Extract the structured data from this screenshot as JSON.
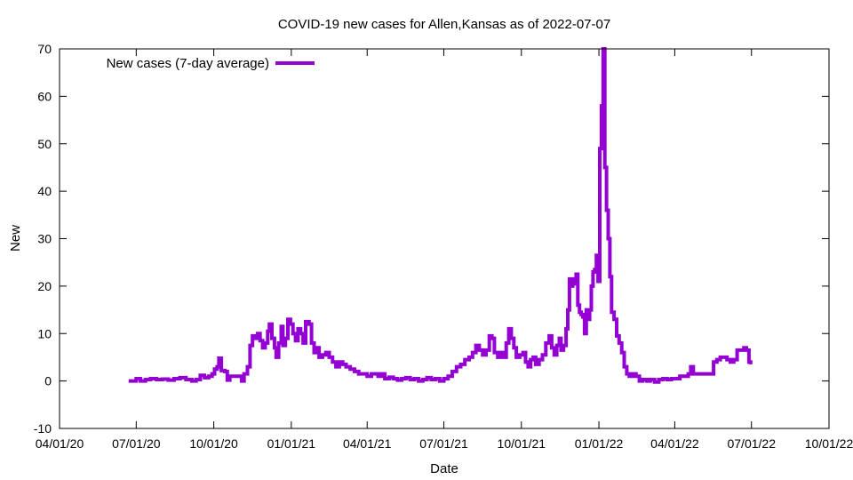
{
  "chart_data": {
    "type": "line",
    "title": "COVID-19 new cases for Allen,Kansas as of 2022-07-07",
    "xlabel": "Date",
    "ylabel": "New",
    "ylim": [
      -10,
      70
    ],
    "xlim": [
      "2020-04-01",
      "2022-10-01"
    ],
    "grid": false,
    "legend_position": "top-left",
    "y_ticks": [
      -10,
      0,
      10,
      20,
      30,
      40,
      50,
      60,
      70
    ],
    "x_ticks": [
      {
        "date": "2020-04-01",
        "label": "04/01/20"
      },
      {
        "date": "2020-07-01",
        "label": "07/01/20"
      },
      {
        "date": "2020-10-01",
        "label": "10/01/20"
      },
      {
        "date": "2021-01-01",
        "label": "01/01/21"
      },
      {
        "date": "2021-04-01",
        "label": "04/01/21"
      },
      {
        "date": "2021-07-01",
        "label": "07/01/21"
      },
      {
        "date": "2021-10-01",
        "label": "10/01/21"
      },
      {
        "date": "2022-01-01",
        "label": "01/01/22"
      },
      {
        "date": "2022-04-01",
        "label": "04/01/22"
      },
      {
        "date": "2022-07-01",
        "label": "07/01/22"
      },
      {
        "date": "2022-10-01",
        "label": "10/01/22"
      }
    ],
    "series": [
      {
        "name": "New cases (7-day average)",
        "color": "#9400d3",
        "points": [
          [
            "2020-06-22",
            0
          ],
          [
            "2020-06-28",
            0
          ],
          [
            "2020-07-01",
            0.5
          ],
          [
            "2020-07-06",
            0
          ],
          [
            "2020-07-12",
            0.3
          ],
          [
            "2020-07-18",
            0.5
          ],
          [
            "2020-07-25",
            0.3
          ],
          [
            "2020-08-01",
            0.4
          ],
          [
            "2020-08-08",
            0.2
          ],
          [
            "2020-08-15",
            0.5
          ],
          [
            "2020-08-22",
            0.7
          ],
          [
            "2020-08-29",
            0.3
          ],
          [
            "2020-09-05",
            0.0
          ],
          [
            "2020-09-10",
            0.3
          ],
          [
            "2020-09-15",
            1.2
          ],
          [
            "2020-09-20",
            0.7
          ],
          [
            "2020-09-25",
            1.0
          ],
          [
            "2020-09-29",
            1.5
          ],
          [
            "2020-10-02",
            2.5
          ],
          [
            "2020-10-05",
            3.0
          ],
          [
            "2020-10-07",
            4.8
          ],
          [
            "2020-10-10",
            2.2
          ],
          [
            "2020-10-14",
            2.0
          ],
          [
            "2020-10-17",
            0.2
          ],
          [
            "2020-10-20",
            1.0
          ],
          [
            "2020-10-26",
            1.0
          ],
          [
            "2020-10-31",
            1.0
          ],
          [
            "2020-11-03",
            0.0
          ],
          [
            "2020-11-06",
            1.5
          ],
          [
            "2020-11-10",
            3.0
          ],
          [
            "2020-11-13",
            7.5
          ],
          [
            "2020-11-16",
            9.5
          ],
          [
            "2020-11-19",
            9.0
          ],
          [
            "2020-11-22",
            10.0
          ],
          [
            "2020-11-25",
            8.5
          ],
          [
            "2020-11-28",
            7.0
          ],
          [
            "2020-12-01",
            8.0
          ],
          [
            "2020-12-04",
            10.5
          ],
          [
            "2020-12-06",
            12.0
          ],
          [
            "2020-12-09",
            9.0
          ],
          [
            "2020-12-12",
            7.0
          ],
          [
            "2020-12-14",
            5.0
          ],
          [
            "2020-12-17",
            8.0
          ],
          [
            "2020-12-20",
            11.5
          ],
          [
            "2020-12-22",
            7.5
          ],
          [
            "2020-12-25",
            9.0
          ],
          [
            "2020-12-28",
            13.0
          ],
          [
            "2020-12-31",
            12.0
          ],
          [
            "2021-01-03",
            10.0
          ],
          [
            "2021-01-06",
            8.5
          ],
          [
            "2021-01-09",
            11.0
          ],
          [
            "2021-01-12",
            10.0
          ],
          [
            "2021-01-15",
            8.0
          ],
          [
            "2021-01-18",
            12.5
          ],
          [
            "2021-01-22",
            12.0
          ],
          [
            "2021-01-25",
            8.0
          ],
          [
            "2021-01-28",
            6.0
          ],
          [
            "2021-01-31",
            7.0
          ],
          [
            "2021-02-03",
            5.0
          ],
          [
            "2021-02-07",
            5.5
          ],
          [
            "2021-02-11",
            6.0
          ],
          [
            "2021-02-15",
            5.0
          ],
          [
            "2021-02-19",
            4.0
          ],
          [
            "2021-02-23",
            3.0
          ],
          [
            "2021-02-27",
            4.0
          ],
          [
            "2021-03-03",
            3.5
          ],
          [
            "2021-03-07",
            3.0
          ],
          [
            "2021-03-12",
            2.5
          ],
          [
            "2021-03-17",
            2.0
          ],
          [
            "2021-03-22",
            1.5
          ],
          [
            "2021-03-27",
            1.5
          ],
          [
            "2021-04-01",
            1.0
          ],
          [
            "2021-04-06",
            1.5
          ],
          [
            "2021-04-10",
            1.5
          ],
          [
            "2021-04-14",
            1.0
          ],
          [
            "2021-04-18",
            1.5
          ],
          [
            "2021-04-22",
            0.5
          ],
          [
            "2021-04-27",
            0.8
          ],
          [
            "2021-05-02",
            0.5
          ],
          [
            "2021-05-07",
            0.2
          ],
          [
            "2021-05-12",
            0.5
          ],
          [
            "2021-05-17",
            0.7
          ],
          [
            "2021-05-22",
            0.3
          ],
          [
            "2021-05-27",
            0.5
          ],
          [
            "2021-06-01",
            0.0
          ],
          [
            "2021-06-06",
            0.3
          ],
          [
            "2021-06-11",
            0.7
          ],
          [
            "2021-06-16",
            0.3
          ],
          [
            "2021-06-21",
            0.5
          ],
          [
            "2021-06-26",
            0.0
          ],
          [
            "2021-07-01",
            0.5
          ],
          [
            "2021-07-06",
            1.0
          ],
          [
            "2021-07-11",
            2.0
          ],
          [
            "2021-07-16",
            3.0
          ],
          [
            "2021-07-21",
            3.5
          ],
          [
            "2021-07-26",
            4.5
          ],
          [
            "2021-07-31",
            5.0
          ],
          [
            "2021-08-04",
            6.0
          ],
          [
            "2021-08-08",
            7.5
          ],
          [
            "2021-08-12",
            6.5
          ],
          [
            "2021-08-16",
            5.5
          ],
          [
            "2021-08-20",
            6.5
          ],
          [
            "2021-08-24",
            9.5
          ],
          [
            "2021-08-27",
            9.0
          ],
          [
            "2021-08-30",
            6.0
          ],
          [
            "2021-09-03",
            5.0
          ],
          [
            "2021-09-07",
            6.0
          ],
          [
            "2021-09-10",
            5.0
          ],
          [
            "2021-09-13",
            8.0
          ],
          [
            "2021-09-16",
            11.0
          ],
          [
            "2021-09-19",
            9.0
          ],
          [
            "2021-09-22",
            7.0
          ],
          [
            "2021-09-25",
            5.0
          ],
          [
            "2021-09-29",
            5.5
          ],
          [
            "2021-10-03",
            6.0
          ],
          [
            "2021-10-06",
            4.0
          ],
          [
            "2021-10-09",
            3.0
          ],
          [
            "2021-10-12",
            4.5
          ],
          [
            "2021-10-15",
            5.0
          ],
          [
            "2021-10-18",
            3.5
          ],
          [
            "2021-10-22",
            4.5
          ],
          [
            "2021-10-26",
            5.5
          ],
          [
            "2021-10-30",
            8.0
          ],
          [
            "2021-11-03",
            9.5
          ],
          [
            "2021-11-06",
            7.0
          ],
          [
            "2021-11-09",
            5.5
          ],
          [
            "2021-11-12",
            7.5
          ],
          [
            "2021-11-15",
            9.0
          ],
          [
            "2021-11-17",
            6.5
          ],
          [
            "2021-11-20",
            7.5
          ],
          [
            "2021-11-23",
            11.0
          ],
          [
            "2021-11-25",
            15.0
          ],
          [
            "2021-11-27",
            21.5
          ],
          [
            "2021-11-29",
            20.0
          ],
          [
            "2021-12-01",
            21.5
          ],
          [
            "2021-12-03",
            20.5
          ],
          [
            "2021-12-05",
            22.5
          ],
          [
            "2021-12-07",
            16.0
          ],
          [
            "2021-12-09",
            14.5
          ],
          [
            "2021-12-11",
            14.0
          ],
          [
            "2021-12-13",
            13.5
          ],
          [
            "2021-12-15",
            10.0
          ],
          [
            "2021-12-17",
            15.0
          ],
          [
            "2021-12-19",
            13.0
          ],
          [
            "2021-12-21",
            15.0
          ],
          [
            "2021-12-23",
            20.0
          ],
          [
            "2021-12-25",
            23.0
          ],
          [
            "2021-12-27",
            23.5
          ],
          [
            "2021-12-29",
            26.5
          ],
          [
            "2021-12-31",
            21.0
          ],
          [
            "2022-01-02",
            49.0
          ],
          [
            "2022-01-04",
            58.0
          ],
          [
            "2022-01-06",
            70.0
          ],
          [
            "2022-01-08",
            45.0
          ],
          [
            "2022-01-10",
            36.0
          ],
          [
            "2022-01-12",
            30.0
          ],
          [
            "2022-01-14",
            22.0
          ],
          [
            "2022-01-16",
            14.5
          ],
          [
            "2022-01-19",
            13.0
          ],
          [
            "2022-01-22",
            9.5
          ],
          [
            "2022-01-25",
            8.0
          ],
          [
            "2022-01-28",
            6.0
          ],
          [
            "2022-01-31",
            3.0
          ],
          [
            "2022-02-03",
            1.5
          ],
          [
            "2022-02-06",
            1.0
          ],
          [
            "2022-02-10",
            1.5
          ],
          [
            "2022-02-14",
            1.0
          ],
          [
            "2022-02-18",
            0.0
          ],
          [
            "2022-02-22",
            0.3
          ],
          [
            "2022-02-27",
            0.0
          ],
          [
            "2022-03-03",
            0.3
          ],
          [
            "2022-03-08",
            -0.2
          ],
          [
            "2022-03-13",
            0.3
          ],
          [
            "2022-03-18",
            0.5
          ],
          [
            "2022-03-23",
            0.3
          ],
          [
            "2022-03-28",
            0.5
          ],
          [
            "2022-04-02",
            0.5
          ],
          [
            "2022-04-07",
            1.0
          ],
          [
            "2022-04-12",
            1.0
          ],
          [
            "2022-04-17",
            1.5
          ],
          [
            "2022-04-20",
            3.0
          ],
          [
            "2022-04-23",
            1.5
          ],
          [
            "2022-04-28",
            1.5
          ],
          [
            "2022-05-03",
            1.5
          ],
          [
            "2022-05-08",
            1.5
          ],
          [
            "2022-05-13",
            1.5
          ],
          [
            "2022-05-17",
            4.0
          ],
          [
            "2022-05-21",
            4.5
          ],
          [
            "2022-05-25",
            5.0
          ],
          [
            "2022-05-29",
            5.0
          ],
          [
            "2022-06-02",
            4.5
          ],
          [
            "2022-06-06",
            4.0
          ],
          [
            "2022-06-10",
            4.5
          ],
          [
            "2022-06-14",
            6.5
          ],
          [
            "2022-06-18",
            6.5
          ],
          [
            "2022-06-22",
            7.0
          ],
          [
            "2022-06-25",
            6.5
          ],
          [
            "2022-06-28",
            4.0
          ],
          [
            "2022-06-30",
            3.5
          ]
        ]
      }
    ]
  }
}
